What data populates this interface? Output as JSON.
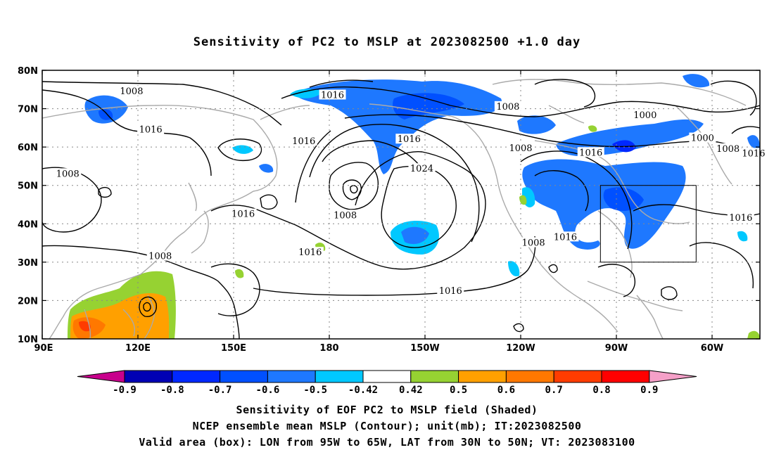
{
  "title": "Sensitivity of PC2 to MSLP at 2023082500 +1.0 day",
  "map": {
    "lat_ticks": [
      "80N",
      "70N",
      "60N",
      "50N",
      "40N",
      "30N",
      "20N",
      "10N"
    ],
    "lon_ticks": [
      "90E",
      "120E",
      "150E",
      "180",
      "150W",
      "120W",
      "90W",
      "60W"
    ],
    "lon_range": [
      90,
      315
    ],
    "lat_range": [
      10,
      80
    ],
    "grid": true,
    "valid_box": {
      "lon": [
        265,
        295
      ],
      "lat": [
        30,
        50
      ]
    },
    "contour_labels": [
      {
        "text": "1008",
        "lon": 118,
        "lat": 74.5
      },
      {
        "text": "1016",
        "lon": 181,
        "lat": 73.5
      },
      {
        "text": "1008",
        "lon": 236,
        "lat": 70.5
      },
      {
        "text": "1000",
        "lon": 279,
        "lat": 68.3
      },
      {
        "text": "1016",
        "lon": 124,
        "lat": 64.5
      },
      {
        "text": "1016",
        "lon": 172,
        "lat": 61.5
      },
      {
        "text": "1016",
        "lon": 205,
        "lat": 62
      },
      {
        "text": "1008",
        "lon": 240,
        "lat": 59.7
      },
      {
        "text": "1016",
        "lon": 262,
        "lat": 58.5
      },
      {
        "text": "1000",
        "lon": 297,
        "lat": 62.3
      },
      {
        "text": "1008",
        "lon": 305,
        "lat": 59.5
      },
      {
        "text": "1016",
        "lon": 313,
        "lat": 58.3
      },
      {
        "text": "1008",
        "lon": 98,
        "lat": 53
      },
      {
        "text": "1024",
        "lon": 209,
        "lat": 54.3
      },
      {
        "text": "1008",
        "lon": 185,
        "lat": 42.2
      },
      {
        "text": "1016",
        "lon": 153,
        "lat": 42.5
      },
      {
        "text": "1016",
        "lon": 254,
        "lat": 36.5
      },
      {
        "text": "1008",
        "lon": 244,
        "lat": 35
      },
      {
        "text": "1016",
        "lon": 309,
        "lat": 41.5
      },
      {
        "text": "1016",
        "lon": 174,
        "lat": 32.5
      },
      {
        "text": "1008",
        "lon": 127,
        "lat": 31.5
      },
      {
        "text": "1016",
        "lon": 218,
        "lat": 22.5
      }
    ]
  },
  "colorbar": {
    "labels": [
      "-0.9",
      "-0.8",
      "-0.7",
      "-0.6",
      "-0.5",
      "-0.42",
      "0.42",
      "0.5",
      "0.6",
      "0.7",
      "0.8",
      "0.9"
    ],
    "colors": [
      "#0000b4",
      "#0028ff",
      "#0050ff",
      "#1e78ff",
      "#00c8ff",
      "#ffffff",
      "#96d232",
      "#ffa000",
      "#ff7800",
      "#ff3c00",
      "#ff0000"
    ],
    "low_extend": "#c8008c",
    "high_extend": "#f5a0c8"
  },
  "caption": {
    "line1": "Sensitivity of EOF PC2 to MSLP field (Shaded)",
    "line2": "NCEP ensemble mean MSLP (Contour); unit(mb); IT:2023082500",
    "line3": "Valid area (box): LON from 95W to 65W, LAT from 30N to 50N; VT: 2023083100"
  }
}
